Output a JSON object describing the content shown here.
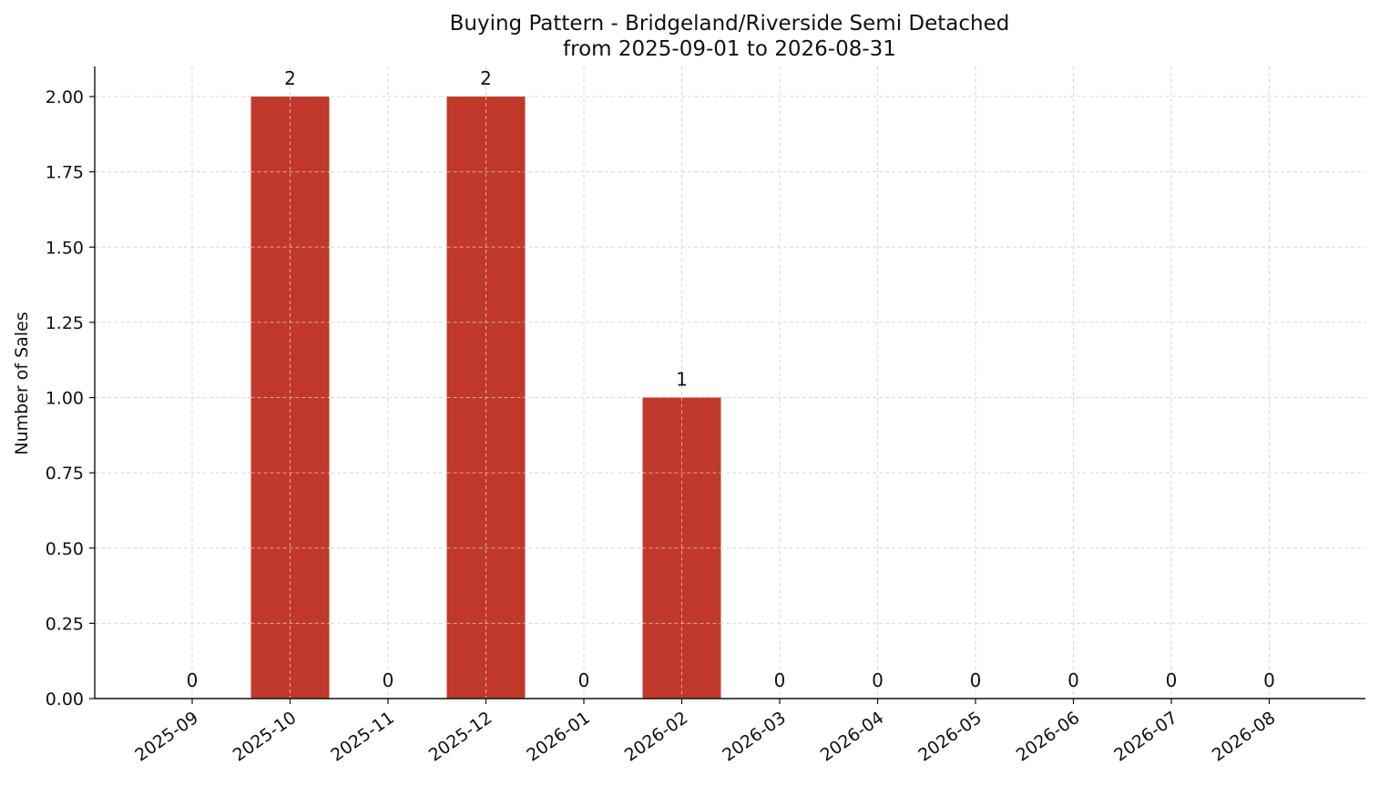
{
  "chart_data": {
    "type": "bar",
    "title": "Buying Pattern - Bridgeland/Riverside Semi Detached",
    "subtitle": "from 2025-09-01 to 2026-08-31",
    "xlabel": "",
    "ylabel": "Number of Sales",
    "categories": [
      "2025-09",
      "2025-10",
      "2025-11",
      "2025-12",
      "2026-01",
      "2026-02",
      "2026-03",
      "2026-04",
      "2026-05",
      "2026-06",
      "2026-07",
      "2026-08"
    ],
    "values": [
      0,
      2,
      0,
      2,
      0,
      1,
      0,
      0,
      0,
      0,
      0,
      0
    ],
    "data_labels": [
      "0",
      "2",
      "0",
      "2",
      "0",
      "1",
      "0",
      "0",
      "0",
      "0",
      "0",
      "0"
    ],
    "ylim": [
      0,
      2.1
    ],
    "yticks": [
      "0.00",
      "0.25",
      "0.50",
      "0.75",
      "1.00",
      "1.25",
      "1.50",
      "1.75",
      "2.00"
    ],
    "grid": true,
    "bar_color": "#c0392b"
  }
}
